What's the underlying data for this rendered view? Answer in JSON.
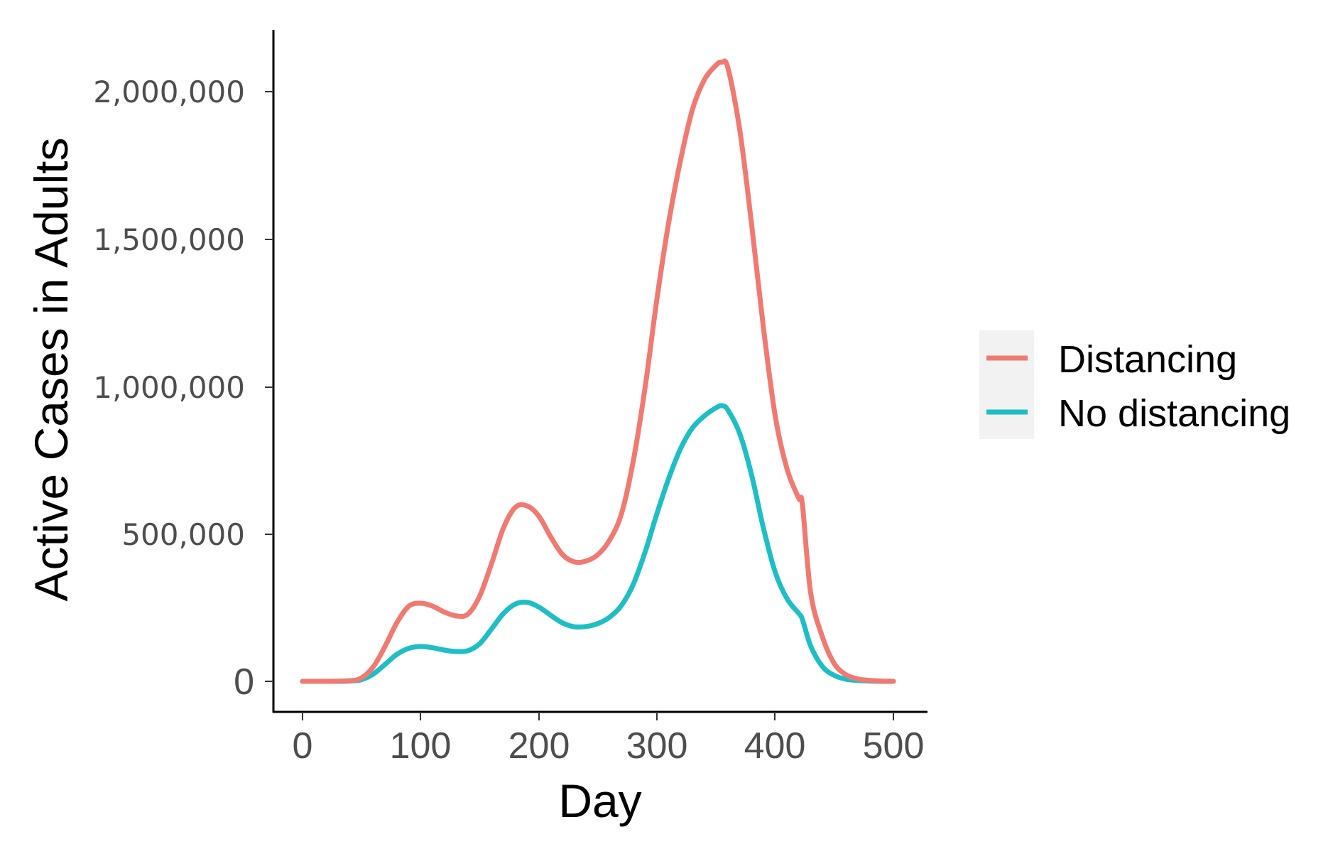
{
  "chart_data": {
    "type": "line",
    "title": "",
    "xlabel": "Day",
    "ylabel": "Active Cases in Adults",
    "xlim": [
      -25,
      525
    ],
    "ylim": [
      -105000,
      2205000
    ],
    "x_ticks": [
      0,
      100,
      200,
      300,
      400,
      500
    ],
    "x_tick_labels": [
      "0",
      "100",
      "200",
      "300",
      "400",
      "500"
    ],
    "y_ticks": [
      0,
      500000,
      1000000,
      1500000,
      2000000
    ],
    "y_tick_labels": [
      "0",
      "500,000",
      "1,000,000",
      "1,500,000",
      "2,000,000"
    ],
    "grid": false,
    "legend_position": "right",
    "series": [
      {
        "name": "Distancing",
        "color": "#f07a72",
        "x": [
          0,
          20,
          40,
          50,
          60,
          70,
          80,
          90,
          100,
          110,
          120,
          130,
          140,
          150,
          160,
          170,
          180,
          190,
          200,
          210,
          220,
          230,
          240,
          250,
          260,
          270,
          280,
          290,
          300,
          310,
          320,
          330,
          340,
          350,
          355,
          360,
          370,
          380,
          390,
          400,
          410,
          420,
          423,
          430,
          440,
          450,
          460,
          470,
          480,
          490,
          500
        ],
        "y": [
          0,
          0,
          2000,
          12000,
          50000,
          120000,
          200000,
          255000,
          265000,
          255000,
          235000,
          222000,
          228000,
          290000,
          400000,
          520000,
          590000,
          595000,
          560000,
          490000,
          430000,
          405000,
          408000,
          430000,
          480000,
          570000,
          750000,
          1000000,
          1300000,
          1560000,
          1770000,
          1940000,
          2040000,
          2090000,
          2100000,
          2080000,
          1870000,
          1550000,
          1200000,
          900000,
          720000,
          620000,
          600000,
          300000,
          150000,
          60000,
          22000,
          8000,
          3000,
          1000,
          0
        ]
      },
      {
        "name": "No distancing",
        "color": "#1fbec5",
        "x": [
          0,
          20,
          40,
          50,
          60,
          70,
          80,
          90,
          100,
          110,
          120,
          130,
          140,
          150,
          160,
          170,
          180,
          190,
          200,
          210,
          220,
          230,
          240,
          250,
          260,
          270,
          280,
          290,
          300,
          310,
          320,
          330,
          340,
          350,
          355,
          360,
          370,
          380,
          390,
          400,
          410,
          420,
          423,
          430,
          440,
          450,
          460,
          470,
          480,
          490,
          500
        ],
        "y": [
          0,
          0,
          1000,
          6000,
          25000,
          58000,
          92000,
          112000,
          118000,
          114000,
          106000,
          101000,
          104000,
          128000,
          178000,
          230000,
          262000,
          268000,
          252000,
          224000,
          198000,
          185000,
          186000,
          196000,
          218000,
          258000,
          330000,
          440000,
          570000,
          690000,
          790000,
          860000,
          900000,
          928000,
          935000,
          920000,
          840000,
          700000,
          520000,
          370000,
          280000,
          230000,
          210000,
          120000,
          50000,
          20000,
          7000,
          3000,
          1000,
          0,
          0
        ]
      }
    ]
  }
}
